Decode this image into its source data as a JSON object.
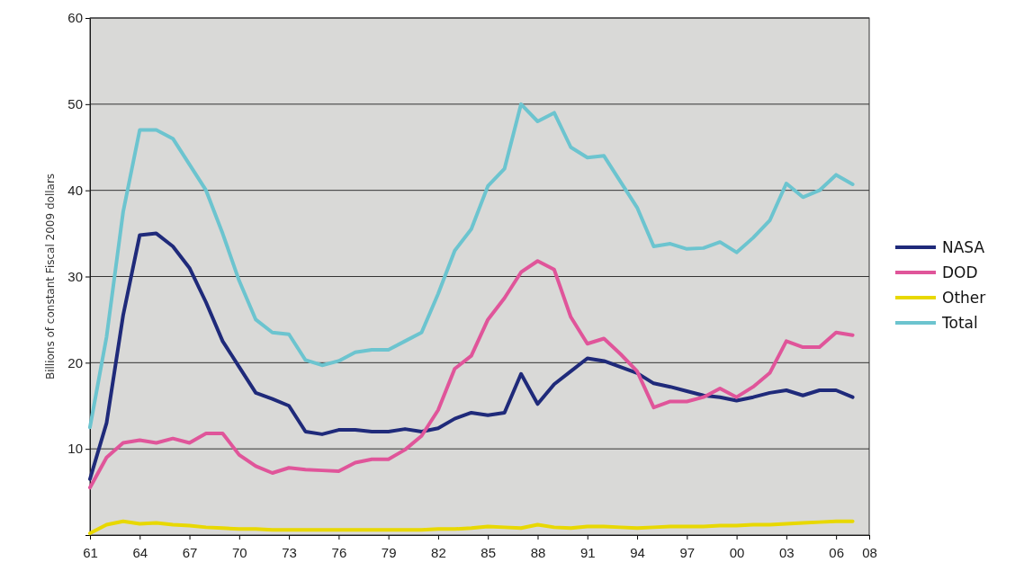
{
  "chart_data": {
    "type": "line",
    "ylabel": "Billions of constant Fiscal 2009 dollars",
    "x": [
      1961,
      1962,
      1963,
      1964,
      1965,
      1966,
      1967,
      1968,
      1969,
      1970,
      1971,
      1972,
      1973,
      1974,
      1975,
      1976,
      1977,
      1978,
      1979,
      1980,
      1981,
      1982,
      1983,
      1984,
      1985,
      1986,
      1987,
      1988,
      1989,
      1990,
      1991,
      1992,
      1993,
      1994,
      1995,
      1996,
      1997,
      1998,
      1999,
      2000,
      2001,
      2002,
      2003,
      2004,
      2005,
      2006,
      2007
    ],
    "xlim": [
      1961,
      2008
    ],
    "xticks": [
      {
        "value": 1961,
        "label": "61"
      },
      {
        "value": 1964,
        "label": "64"
      },
      {
        "value": 1967,
        "label": "67"
      },
      {
        "value": 1970,
        "label": "70"
      },
      {
        "value": 1973,
        "label": "73"
      },
      {
        "value": 1976,
        "label": "76"
      },
      {
        "value": 1979,
        "label": "79"
      },
      {
        "value": 1982,
        "label": "82"
      },
      {
        "value": 1985,
        "label": "85"
      },
      {
        "value": 1988,
        "label": "88"
      },
      {
        "value": 1991,
        "label": "91"
      },
      {
        "value": 1994,
        "label": "94"
      },
      {
        "value": 1997,
        "label": "97"
      },
      {
        "value": 2000,
        "label": "00"
      },
      {
        "value": 2003,
        "label": "03"
      },
      {
        "value": 2006,
        "label": "06"
      },
      {
        "value": 2008,
        "label": "08"
      }
    ],
    "ylim": [
      0,
      60
    ],
    "yticks": [
      10,
      20,
      30,
      40,
      50,
      60
    ],
    "grid": "y",
    "legend": "right",
    "series": [
      {
        "name": "NASA",
        "color": "#1f2a7a",
        "values": [
          6.5,
          13,
          25.5,
          34.8,
          35,
          33.5,
          31,
          27,
          22.5,
          19.5,
          16.5,
          15.8,
          15,
          12,
          11.7,
          12.2,
          12.2,
          12,
          12,
          12.3,
          12,
          12.4,
          13.5,
          14.2,
          13.9,
          14.2,
          18.7,
          15.2,
          17.5,
          19,
          20.5,
          20.2,
          19.5,
          18.8,
          17.6,
          17.2,
          16.7,
          16.2,
          16,
          15.6,
          16,
          16.5,
          16.8,
          16.2,
          16.8,
          16.8,
          16
        ]
      },
      {
        "name": "DOD",
        "color": "#e0559a",
        "values": [
          5.5,
          9,
          10.7,
          11,
          10.7,
          11.2,
          10.7,
          11.8,
          11.8,
          9.3,
          8,
          7.2,
          7.8,
          7.6,
          7.5,
          7.4,
          8.4,
          8.8,
          8.8,
          9.9,
          11.5,
          14.5,
          19.3,
          20.8,
          25,
          27.5,
          30.5,
          31.8,
          30.8,
          25.3,
          22.2,
          22.8,
          21,
          19,
          14.8,
          15.5,
          15.5,
          16,
          17,
          16,
          17.2,
          18.8,
          22.5,
          21.8,
          21.8,
          23.5,
          23.2
        ]
      },
      {
        "name": "Other",
        "color": "#e8d800",
        "values": [
          0.2,
          1.2,
          1.6,
          1.3,
          1.4,
          1.2,
          1.1,
          0.9,
          0.8,
          0.7,
          0.7,
          0.6,
          0.6,
          0.6,
          0.6,
          0.6,
          0.6,
          0.6,
          0.6,
          0.6,
          0.6,
          0.7,
          0.7,
          0.8,
          1,
          0.9,
          0.8,
          1.2,
          0.9,
          0.8,
          1,
          1,
          0.9,
          0.8,
          0.9,
          1,
          1,
          1,
          1.1,
          1.1,
          1.2,
          1.2,
          1.3,
          1.4,
          1.5,
          1.6,
          1.6
        ]
      },
      {
        "name": "Total",
        "color": "#6cc4cf",
        "values": [
          12.5,
          23,
          37.5,
          47,
          47,
          46,
          43,
          40,
          35,
          29.5,
          25,
          23.5,
          23.3,
          20.3,
          19.7,
          20.2,
          21.2,
          21.5,
          21.5,
          22.5,
          23.5,
          28,
          33,
          35.5,
          40.5,
          42.5,
          50,
          48,
          49,
          45,
          43.8,
          44,
          41,
          38,
          33.5,
          33.8,
          33.2,
          33.3,
          34,
          32.8,
          34.5,
          36.5,
          40.8,
          39.2,
          40,
          41.8,
          40.7
        ]
      }
    ]
  }
}
